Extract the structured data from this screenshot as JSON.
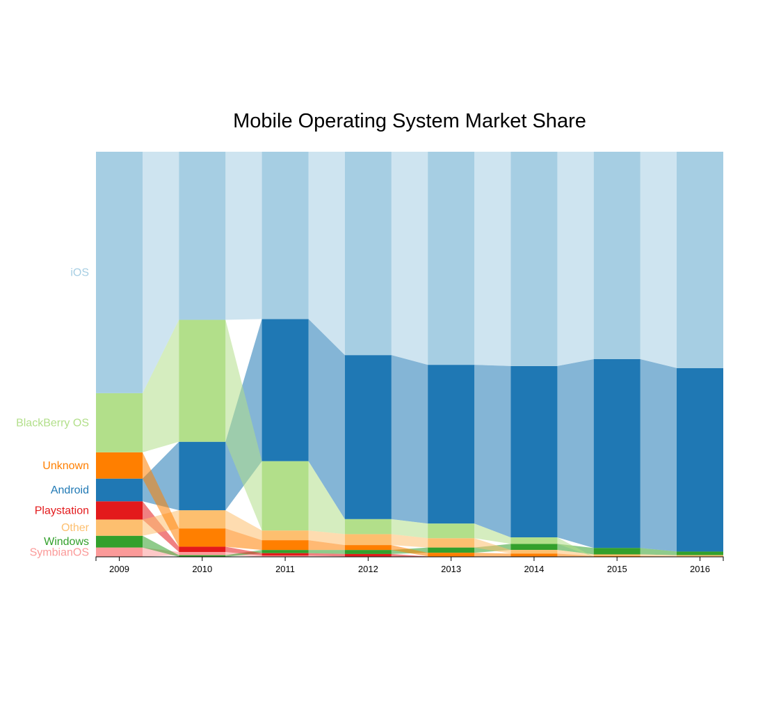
{
  "chart_data": {
    "type": "area",
    "title": "Mobile Operating System Market Share",
    "xlabel": "",
    "ylabel": "",
    "ylim": [
      0,
      100
    ],
    "categories": [
      "2009",
      "2010",
      "2011",
      "2012",
      "2013",
      "2014",
      "2015",
      "2016"
    ],
    "series": [
      {
        "name": "SymbianOS",
        "color": "#fb9a99",
        "values": [
          2.3,
          0.8,
          0.3,
          0.1,
          0.0,
          0.0,
          0.0,
          0.0
        ]
      },
      {
        "name": "Windows",
        "color": "#33a02c",
        "values": [
          2.9,
          0.4,
          0.8,
          1.0,
          1.3,
          1.5,
          1.6,
          0.9
        ]
      },
      {
        "name": "Playstation",
        "color": "#e31a1c",
        "values": [
          4.5,
          1.3,
          0.6,
          0.6,
          0.1,
          0.1,
          0.0,
          0.0
        ]
      },
      {
        "name": "Other",
        "color": "#fdbf6f",
        "values": [
          4.0,
          4.5,
          2.4,
          2.7,
          2.3,
          0.9,
          0.4,
          0.3
        ]
      },
      {
        "name": "Android",
        "color": "#1f78b4",
        "values": [
          5.6,
          16.9,
          35.1,
          40.5,
          39.2,
          42.3,
          46.6,
          45.3
        ]
      },
      {
        "name": "Unknown",
        "color": "#ff7f00",
        "values": [
          6.5,
          4.5,
          2.4,
          1.2,
          0.9,
          0.7,
          0.2,
          0.1
        ]
      },
      {
        "name": "BlackBerry OS",
        "color": "#b2df8a",
        "values": [
          14.6,
          30.1,
          17.1,
          3.7,
          3.6,
          1.6,
          0.0,
          0.0
        ]
      },
      {
        "name": "iOS",
        "color": "#a6cee3",
        "values": [
          59.6,
          41.5,
          41.3,
          50.2,
          52.6,
          52.9,
          51.2,
          53.4
        ]
      }
    ]
  }
}
